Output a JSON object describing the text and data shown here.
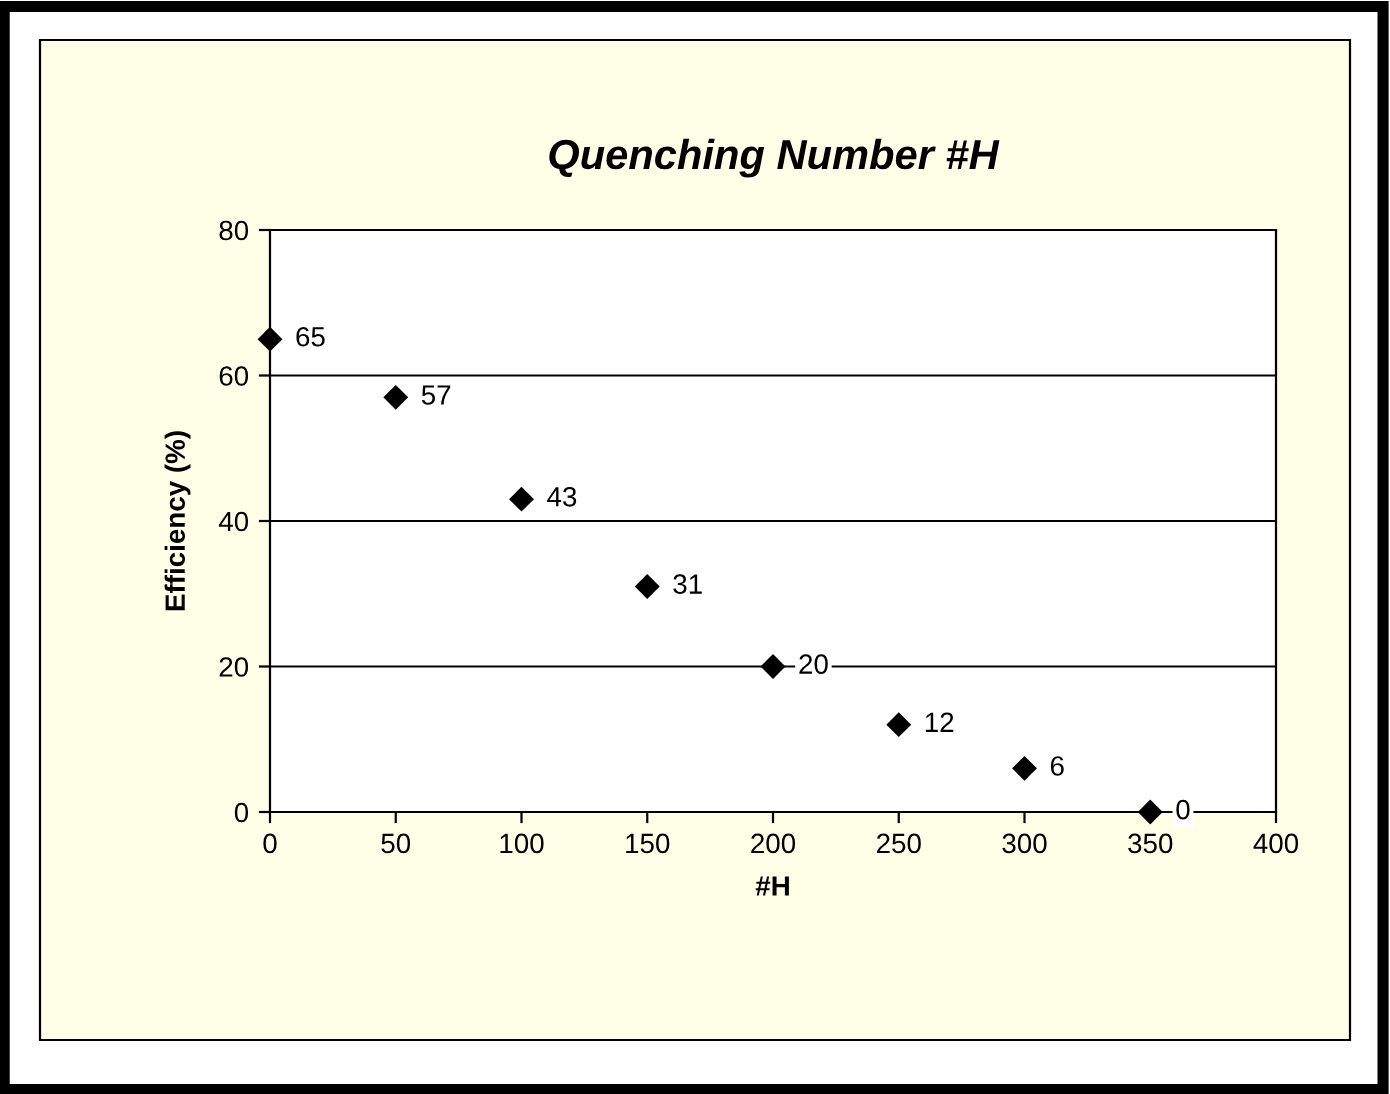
{
  "chart_data": {
    "type": "scatter",
    "title": "Quenching Number #H",
    "xlabel": "#H",
    "ylabel": "Efficiency (%)",
    "x": [
      0,
      50,
      100,
      150,
      200,
      250,
      300,
      350
    ],
    "series": [
      {
        "color": "#000000",
        "values": [
          65,
          57,
          43,
          31,
          20,
          12,
          6,
          0
        ]
      }
    ],
    "marker": "diamond",
    "data_labels": true,
    "xlim": [
      0,
      400
    ],
    "xticks": [
      0,
      50,
      100,
      150,
      200,
      250,
      300,
      350,
      400
    ],
    "ylim": [
      0,
      80
    ],
    "yticks": [
      0,
      20,
      40,
      60,
      80
    ],
    "grid": "y"
  }
}
